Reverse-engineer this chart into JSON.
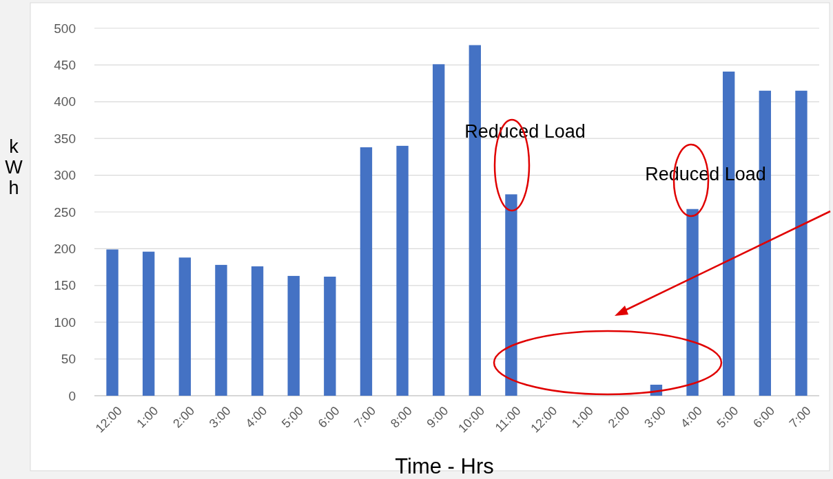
{
  "chart_data": {
    "type": "bar",
    "xlabel": "Time  - Hrs",
    "ylabel": "kWh",
    "categories": [
      "12:00",
      "1:00",
      "2:00",
      "3:00",
      "4:00",
      "5:00",
      "6:00",
      "7:00",
      "8:00",
      "9:00",
      "10:00",
      "11:00",
      "12:00",
      "1:00",
      "2:00",
      "3:00",
      "4:00",
      "5:00",
      "6:00",
      "7:00"
    ],
    "values": [
      199,
      196,
      188,
      178,
      176,
      163,
      162,
      338,
      340,
      451,
      477,
      274,
      0,
      0,
      0,
      15,
      254,
      441,
      415,
      415
    ],
    "color": "#4472c4",
    "ylim": [
      0,
      500
    ],
    "yticks": [
      0,
      50,
      100,
      150,
      200,
      250,
      300,
      350,
      400,
      450,
      500
    ],
    "grid": "y",
    "annotations": [
      "Reduced Load",
      "Reduced Load"
    ]
  }
}
